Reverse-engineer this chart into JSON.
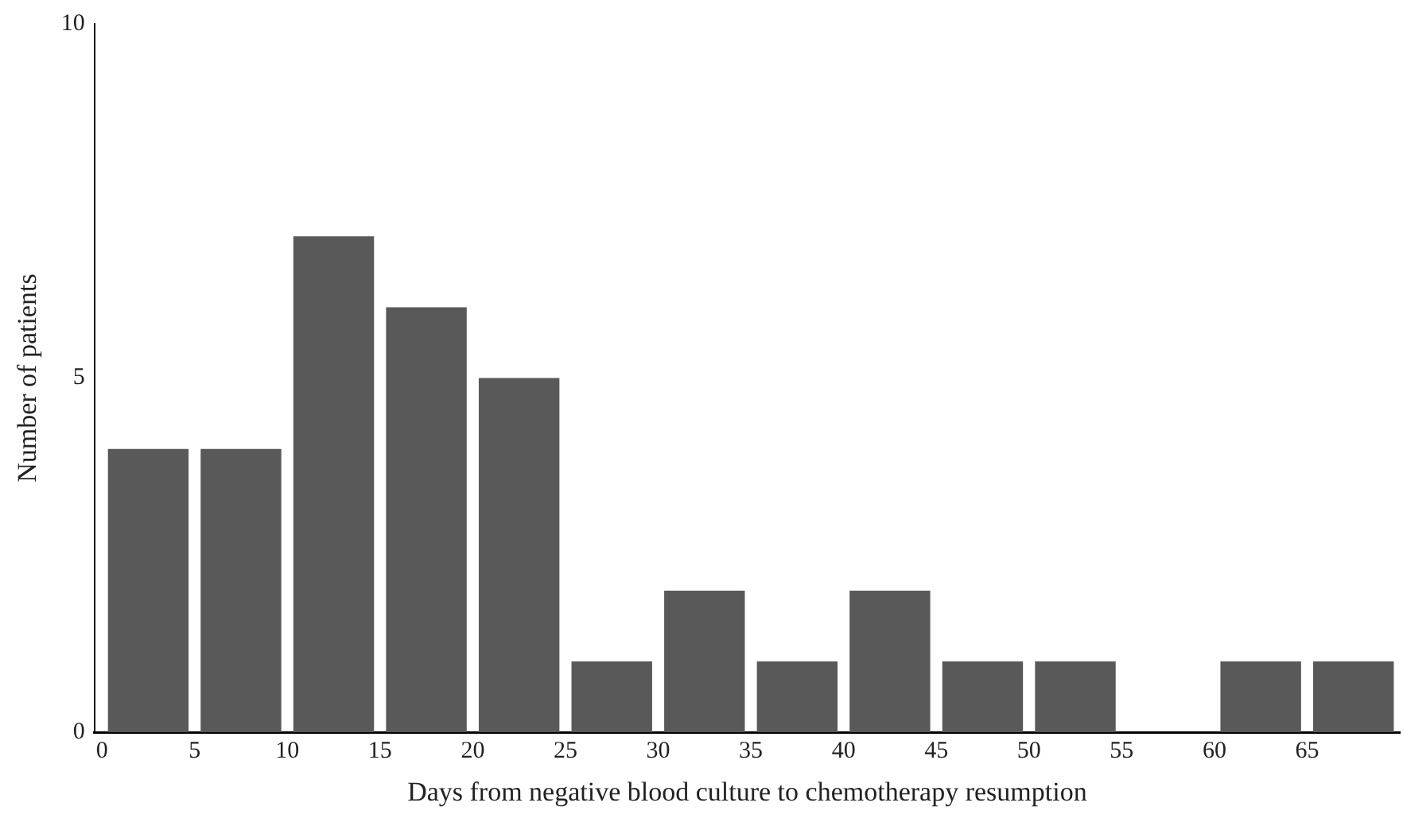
{
  "chart_data": {
    "type": "histogram",
    "xlabel": "Days from negative blood culture to chemotherapy resumption",
    "ylabel": "Number of patients",
    "bins": [
      0,
      5,
      10,
      15,
      20,
      25,
      30,
      35,
      40,
      45,
      50,
      55,
      60,
      65,
      70
    ],
    "values": [
      4,
      4,
      7,
      6,
      5,
      1,
      2,
      1,
      2,
      1,
      1,
      0,
      1,
      1
    ],
    "color": "#595959",
    "xlim": [
      -0.4,
      70
    ],
    "xticks": [
      0,
      5,
      10,
      15,
      20,
      25,
      30,
      35,
      40,
      45,
      50,
      55,
      60,
      65
    ],
    "ylim": [
      0,
      10
    ],
    "yticks": [
      0,
      5,
      10
    ]
  }
}
